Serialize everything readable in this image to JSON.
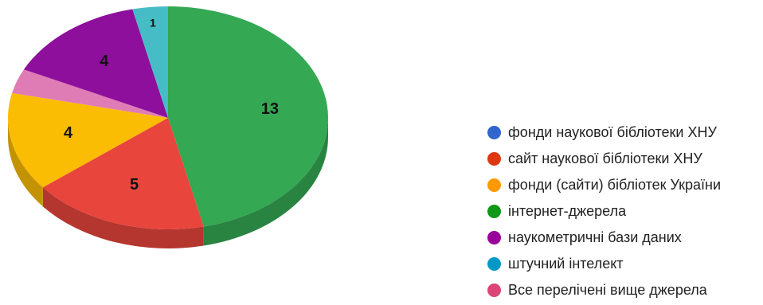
{
  "chart_data": {
    "type": "pie",
    "title": "",
    "categories": [
      "фонди наукової бібліотеки ХНУ",
      "сайт наукової бібліотеки ХНУ",
      "фонди (сайти) бібліотек України",
      "інтернет-джерела",
      "наукометричні бази даних",
      "штучний інтелект",
      "Все перелічені вище джерела"
    ],
    "values": [
      0,
      5,
      4,
      13,
      4,
      1,
      1
    ],
    "data_labels": [
      "",
      "5",
      "4",
      "13",
      "4",
      "1",
      ""
    ],
    "colors": [
      "#3366cc",
      "#dc3912",
      "#ff9900",
      "#109618",
      "#990099",
      "#0099c6",
      "#dd4477"
    ],
    "slice_colors_drawn": [
      "#3366cc",
      "#e8453c",
      "#fbbc04",
      "#34a853",
      "#8e0f9c",
      "#46bdc6",
      "#e07cb5"
    ],
    "draw_order": [
      3,
      1,
      2,
      6,
      4,
      5
    ],
    "legend_position": "right",
    "style": "3d"
  }
}
